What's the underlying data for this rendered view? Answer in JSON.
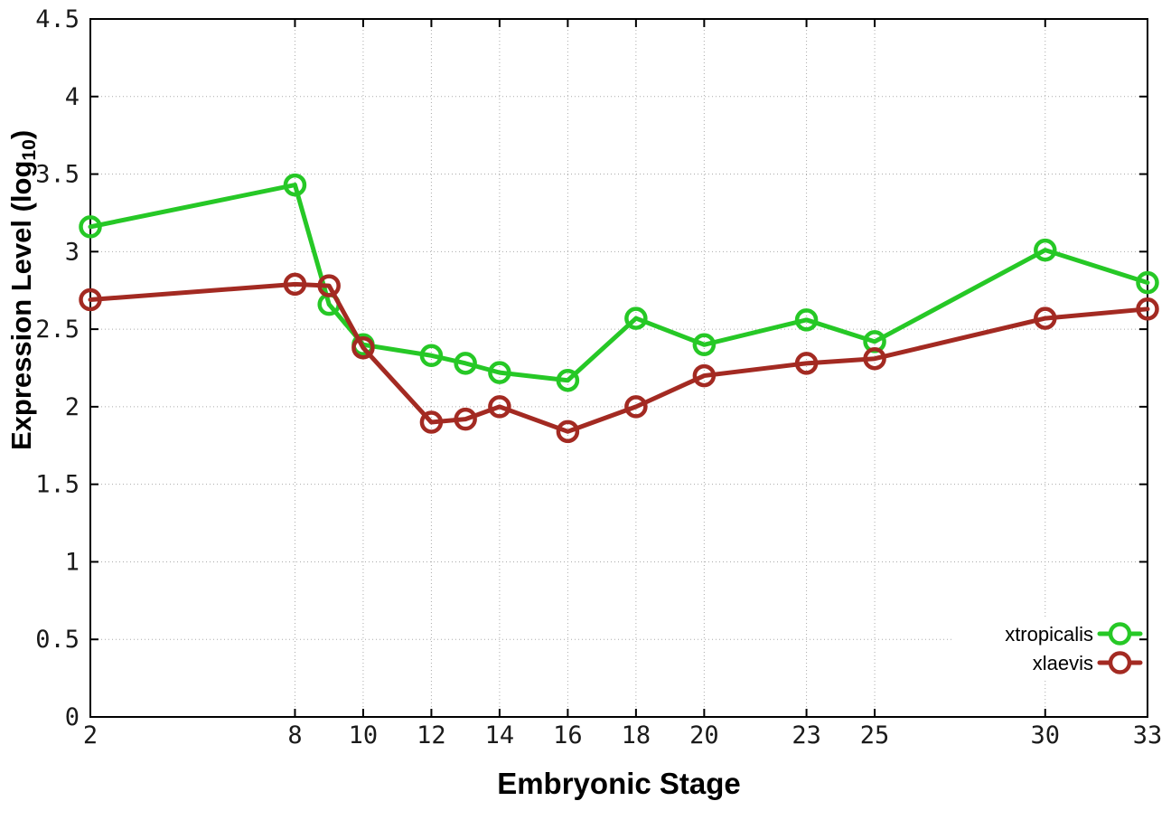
{
  "chart_data": {
    "type": "line",
    "title": "",
    "xlabel": "Embryonic Stage",
    "ylabel": "Expression Level (log10)",
    "ylabel_parts": {
      "before": "Expression Level (log",
      "sub": "10",
      "after": ")"
    },
    "xlim": [
      2,
      33
    ],
    "ylim": [
      0,
      4.5
    ],
    "x_ticks": [
      2,
      8,
      10,
      12,
      14,
      16,
      18,
      20,
      23,
      25,
      30,
      33
    ],
    "x_tick_labels": [
      "2",
      "8",
      "10",
      "12",
      "14",
      "16",
      "18",
      "20",
      "23",
      "25",
      "30",
      "33"
    ],
    "y_ticks": [
      0,
      0.5,
      1,
      1.5,
      2,
      2.5,
      3,
      3.5,
      4,
      4.5
    ],
    "y_tick_labels": [
      "0",
      "0.5",
      "1",
      "1.5",
      "2",
      "2.5",
      "3",
      "3.5",
      "4",
      "4.5"
    ],
    "grid": true,
    "grid_style": "dotted",
    "legend_position": "bottom-right-inside",
    "x": [
      2,
      8,
      9,
      10,
      12,
      13,
      14,
      16,
      18,
      20,
      23,
      25,
      30,
      33
    ],
    "series": [
      {
        "name": "xtropicalis",
        "color": "#26c826",
        "marker": "open-circle",
        "values": [
          3.16,
          3.43,
          2.66,
          2.4,
          2.33,
          2.28,
          2.22,
          2.17,
          2.57,
          2.4,
          2.56,
          2.42,
          3.01,
          2.8
        ]
      },
      {
        "name": "xlaevis",
        "color": "#a32a22",
        "marker": "open-circle",
        "values": [
          2.69,
          2.79,
          2.78,
          2.38,
          1.9,
          1.92,
          2.0,
          1.84,
          2.0,
          2.2,
          2.28,
          2.31,
          2.57,
          2.63
        ]
      }
    ]
  },
  "colors": {
    "background": "#ffffff",
    "border": "#000000",
    "grid": "#aaaaaa",
    "tick_text": "#1a1a1a",
    "series_green": "#26c826",
    "series_dark_red": "#a32a22"
  }
}
